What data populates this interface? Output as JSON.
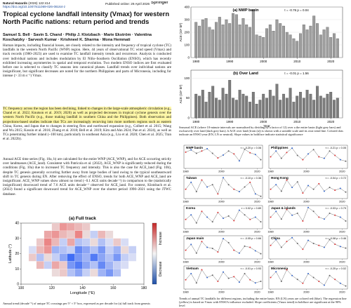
{
  "header": {
    "journal": "Natural Hazards",
    "volume": "(2026) 122:414",
    "doi": "https://doi.org/10.1007/s11069-026-06164-z",
    "published": "Published online: 29 April 2026",
    "publisher": "Springer"
  },
  "title": "Tropical cyclone landfall intensity (Vmax) for western North Pacific nations: return period and trends",
  "authors": "Samuel S. Bell · Savin S. Chand · Philip J. Klotzbach · Marie Ekström · Valentina Koschatzky · Sarvesh Kumar · Krishneel K. Sharma · Mona Hemmati",
  "abstract": "Human impacts, including financial losses, are closely related to the intensity and frequency of tropical cyclone (TC) landfalls in the western North Pacific (WNP) region. Here, 44 years of observational TC wind speed (Vmax) and track records (1980–2023) are used to examine TC landfall intensity trends and recurrence. Analysis is conducted over individual nations and includes modulation by El Niño–Southern Oscillation (ENSO), which has recently exhibited increasing asymmetries in spatial and temporal evolution. Two modern ENSO indices are first evaluated before one is selected to classify TC seasons into canonical phases. Landfall trends over individual nations are insignificant, but significant decreases are noted for the northern Philippines and parts of Micronesia, including for intense (> 33 m s⁻¹) Vmax.",
  "body": [
    "TC frequency across the region has been declining, linked to changes in the large-scale atmospheric circulation (e.g., Chand et al. 2022; Knutson et al. 2019; 2020) as well as projected decreases in tropical cyclone genesis over the western North Pacific (e.g., those making landfall in southern China and the Philippines). Both observation and projections-based studies indicate that TCs are increasingly recurving into more northern regions such as eastern China, Korea, and Japan due to changes in steering flow and northward expansion (e.g., Colbert et al. 2015; Wang and Wu 2015; Kossin et al. 2016; Zhang et al. 2018; Bell et al. 2019; Kim and Ahn 2024; Pan et al. 2024), as well as TCs penetrating further inland (~100 km), particularly in southeast Asia (e.g., Liu et al. 2020; Chen et al. 2025; Tran et al. 2022b).",
    "Annual ACE time series (Fig. 10a, b) are calculated for the entire WNP (ACE_WNP), and for ACE occurring strictly over landmasses (ACE_land). Consistent with Patricola et al. (2022), ACE_WNP is significantly reduced during the conditions (Fig. 10a) due to increased TC frequency and intensity. This is also the case for ACE_land (Fig. 10b), despite TC genesis generally occurring further away from large bodies of land owing to the typical southeastward shift in TC genesis during EN. After removing the effect of ENSO, trends for both ACE_WNP and ACE_land are insignificant. ACE_WNP values show almost no trend (−0.1 ACE units decade⁻¹) in comparison to the (statistically insignificant) downward trend of 7.6 ACE units decade⁻¹ observed for ACE_land. For context, Klotzbach et al. (2022) found a significant downward trend for ACE_WNP over the shorter period 1990–2021 using the JTWC database."
  ],
  "figures": {
    "heatmap_caption": "Annual trend (decade⁻¹) of unique TC crossings per 5° × 5° box, expressed as per decade for (a) full track from genesis",
    "ace_caption": "Seasonal ACE (where 10-minute intervals are normalised by dividing by a factor of 12) over a the entire basin (light grey bars) and exclusively over land (dark grey bars). b ACE over land (from (a)) is shown with a suitable scale and its own trend line. Colored dots indicate an ENSO year (EN, LN or neutral). Slope values in boldface indicate statistical significance",
    "panels_caption": "Trends of annual TC landfalls for different regions, including the entire basin. EN (LN) years are colored red (blue). The regression line (yellow) is based on Vmax with ENSO's influence excluded. Slope coefficients (Vmax trend) in boldface are significant at the 90% level"
  },
  "chart_data": [
    {
      "type": "bar",
      "title": "(a) NWP basin",
      "stats": "τ = -0.76  p = 0.04",
      "ylabel": "ACE (10⁴ kt²)",
      "color": "#9e9e9e",
      "x": [
        1980,
        1981,
        1982,
        1983,
        1984,
        1985,
        1986,
        1987,
        1988,
        1989,
        1990,
        1991,
        1992,
        1993,
        1994,
        1995,
        1996,
        1997,
        1998,
        1999,
        2000,
        2001,
        2002,
        2003,
        2004,
        2005,
        2006,
        2007,
        2008,
        2009,
        2010,
        2011,
        2012,
        2013,
        2014,
        2015,
        2016,
        2017,
        2018,
        2019,
        2020,
        2021,
        2022
      ],
      "values": [
        280,
        250,
        300,
        310,
        240,
        220,
        280,
        320,
        260,
        300,
        270,
        350,
        340,
        260,
        310,
        260,
        240,
        380,
        180,
        170,
        160,
        230,
        260,
        210,
        300,
        270,
        250,
        200,
        180,
        150,
        130,
        190,
        260,
        220,
        250,
        330,
        270,
        180,
        220,
        240,
        160,
        190,
        150
      ],
      "xlim": [
        1978.5,
        2023.5
      ],
      "xticks": [
        1980,
        1990,
        2000,
        2010,
        2020
      ],
      "ylim": [
        0,
        400
      ],
      "yticks": [
        0,
        100,
        200,
        300,
        400
      ]
    },
    {
      "type": "bar",
      "title": "(b) Over Land",
      "stats": "τ = -0.01  p = 1.56",
      "ylabel": "ACE (10⁴ kt²)",
      "xlabel": "Year",
      "color": "#7d7d7d",
      "x": [
        1980,
        1981,
        1982,
        1983,
        1984,
        1985,
        1986,
        1987,
        1988,
        1989,
        1990,
        1991,
        1992,
        1993,
        1994,
        1995,
        1996,
        1997,
        1998,
        1999,
        2000,
        2001,
        2002,
        2003,
        2004,
        2005,
        2006,
        2007,
        2008,
        2009,
        2010,
        2011,
        2012,
        2013,
        2014,
        2015,
        2016,
        2017,
        2018,
        2019,
        2020,
        2021,
        2022
      ],
      "values": [
        60,
        55,
        70,
        40,
        65,
        80,
        50,
        45,
        75,
        60,
        95,
        50,
        45,
        70,
        60,
        55,
        40,
        65,
        35,
        45,
        60,
        50,
        70,
        55,
        85,
        45,
        60,
        50,
        75,
        40,
        55,
        65,
        50,
        70,
        60,
        45,
        80,
        55,
        50,
        60,
        65,
        45,
        50
      ],
      "xlim": [
        1978.5,
        2023.5
      ],
      "xticks": [
        1980,
        1990,
        2000,
        2010,
        2020
      ],
      "ylim": [
        0,
        120
      ],
      "yticks": [
        0,
        50,
        100
      ]
    },
    {
      "type": "line",
      "title": "NWP basin",
      "stats": "τ = -0.20 p = 0.06",
      "x": [
        1980,
        1983,
        1986,
        1989,
        1992,
        1995,
        1998,
        2001,
        2004,
        2007,
        2010,
        2013,
        2016,
        2019,
        2022
      ],
      "values": [
        280,
        320,
        260,
        300,
        340,
        260,
        180,
        230,
        300,
        250,
        130,
        330,
        270,
        240,
        150
      ],
      "xlim": [
        1979,
        2023
      ],
      "xticks": [
        1980,
        2000,
        2020
      ],
      "ylim": [
        0,
        400
      ]
    },
    {
      "type": "line",
      "title": "Philippines",
      "stats": "τ = -0.21 p = 0.05",
      "x": [
        1980,
        1983,
        1986,
        1989,
        1992,
        1995,
        1998,
        2001,
        2004,
        2007,
        2010,
        2013,
        2016,
        2019,
        2022
      ],
      "values": [
        40,
        60,
        35,
        55,
        70,
        45,
        30,
        50,
        65,
        40,
        35,
        60,
        45,
        30,
        25
      ],
      "xlim": [
        1979,
        2023
      ],
      "xticks": [
        1980,
        2000,
        2020
      ],
      "ylim": [
        0,
        80
      ]
    },
    {
      "type": "line",
      "title": "Taiwan",
      "stats": "τ = -0.10 p = 0.36",
      "x": [
        1980,
        1983,
        1986,
        1989,
        1992,
        1995,
        1998,
        2001,
        2004,
        2007,
        2010,
        2013,
        2016,
        2019,
        2022
      ],
      "values": [
        20,
        35,
        15,
        40,
        25,
        30,
        10,
        45,
        30,
        20,
        15,
        25,
        35,
        10,
        5
      ],
      "xlim": [
        1979,
        2023
      ],
      "xticks": [
        1980,
        2000,
        2020
      ],
      "ylim": [
        0,
        50
      ]
    },
    {
      "type": "line",
      "title": "Hong Kong",
      "stats": "τ = -0.04 p = 0.72",
      "x": [
        1980,
        1983,
        1986,
        1989,
        1992,
        1995,
        1998,
        2001,
        2004,
        2007,
        2010,
        2013,
        2016,
        2019,
        2022
      ],
      "values": [
        10,
        15,
        8,
        20,
        12,
        18,
        6,
        14,
        10,
        16,
        8,
        12,
        9,
        11,
        7
      ],
      "xlim": [
        1979,
        2023
      ],
      "xticks": [
        1980,
        2000,
        2020
      ],
      "ylim": [
        0,
        25
      ]
    },
    {
      "type": "line",
      "title": "Korea",
      "stats": "τ = 0.02 p = 0.89",
      "x": [
        1980,
        1983,
        1986,
        1989,
        1992,
        1995,
        1998,
        2001,
        2004,
        2007,
        2010,
        2013,
        2016,
        2019,
        2022
      ],
      "values": [
        8,
        12,
        5,
        15,
        10,
        6,
        14,
        9,
        11,
        7,
        16,
        12,
        8,
        10,
        6
      ],
      "xlim": [
        1979,
        2023
      ],
      "xticks": [
        1980,
        2000,
        2020
      ],
      "ylim": [
        0,
        20
      ]
    },
    {
      "type": "line",
      "title": "Japan & islands",
      "stats": "τ = -0.03 p = 0.79",
      "x": [
        1980,
        1983,
        1986,
        1989,
        1992,
        1995,
        1998,
        2001,
        2004,
        2007,
        2010,
        2013,
        2016,
        2019,
        2022
      ],
      "values": [
        30,
        45,
        25,
        50,
        35,
        40,
        20,
        55,
        45,
        30,
        25,
        40,
        35,
        30,
        20
      ],
      "xlim": [
        1979,
        2023
      ],
      "xticks": [
        1980,
        2000,
        2020
      ],
      "ylim": [
        0,
        60
      ]
    },
    {
      "type": "line",
      "title": "Japan main",
      "stats": "τ = -0.05 p = 0.66",
      "x": [
        1980,
        1983,
        1986,
        1989,
        1992,
        1995,
        1998,
        2001,
        2004,
        2007,
        2010,
        2013,
        2016,
        2019,
        2022
      ],
      "values": [
        15,
        25,
        10,
        30,
        20,
        18,
        12,
        35,
        28,
        15,
        10,
        22,
        20,
        14,
        9
      ],
      "xlim": [
        1979,
        2023
      ],
      "xticks": [
        1980,
        2000,
        2020
      ],
      "ylim": [
        0,
        40
      ]
    },
    {
      "type": "line",
      "title": "China",
      "stats": "τ = -0.08 p = 0.46",
      "x": [
        1980,
        1983,
        1986,
        1989,
        1992,
        1995,
        1998,
        2001,
        2004,
        2007,
        2010,
        2013,
        2016,
        2019,
        2022
      ],
      "values": [
        35,
        50,
        30,
        45,
        55,
        40,
        25,
        48,
        40,
        35,
        30,
        50,
        38,
        32,
        28
      ],
      "xlim": [
        1979,
        2023
      ],
      "xticks": [
        1980,
        2000,
        2020
      ],
      "ylim": [
        0,
        60
      ]
    },
    {
      "type": "line",
      "title": "Vietnam",
      "stats": "τ = -0.01 p = 0.93",
      "x": [
        1980,
        1983,
        1986,
        1989,
        1992,
        1995,
        1998,
        2001,
        2004,
        2007,
        2010,
        2013,
        2016,
        2019,
        2022
      ],
      "values": [
        12,
        20,
        8,
        25,
        15,
        18,
        10,
        22,
        14,
        16,
        9,
        20,
        12,
        8,
        10
      ],
      "xlim": [
        1979,
        2023
      ],
      "xticks": [
        1980,
        2000,
        2020
      ],
      "ylim": [
        0,
        30
      ]
    },
    {
      "type": "line",
      "title": "Micronesia",
      "stats": "τ = -0.25 p = 0.02",
      "x": [
        1980,
        1983,
        1986,
        1989,
        1992,
        1995,
        1998,
        2001,
        2004,
        2007,
        2010,
        2013,
        2016,
        2019,
        2022
      ],
      "values": [
        30,
        45,
        20,
        50,
        35,
        25,
        15,
        40,
        30,
        20,
        10,
        35,
        25,
        15,
        8
      ],
      "xlim": [
        1979,
        2023
      ],
      "xticks": [
        1980,
        2000,
        2020
      ],
      "ylim": [
        0,
        60
      ]
    },
    {
      "type": "heatmap",
      "title": "(a) Full track",
      "xlabel": "Longitude (°E)",
      "ylabel": "Latitude (°)",
      "colorbar_labels": [
        "Increase",
        "Decrease"
      ],
      "x": [
        100,
        105,
        110,
        115,
        120,
        125,
        130,
        135,
        140,
        145,
        150,
        155,
        160,
        165,
        170,
        175
      ],
      "y": [
        5,
        10,
        15,
        20,
        25,
        30,
        35
      ],
      "values": [
        [
          null,
          null,
          null,
          null,
          0.1,
          0.2,
          -0.3,
          -0.5,
          -0.2,
          0.1,
          -0.4,
          -0.6,
          -0.3,
          null,
          null,
          null
        ],
        [
          null,
          null,
          0.3,
          -0.2,
          0.4,
          0.2,
          -0.6,
          -0.8,
          -0.5,
          -0.3,
          -0.7,
          -0.4,
          -0.2,
          -0.1,
          null,
          null
        ],
        [
          null,
          0.2,
          -0.3,
          0.1,
          -0.2,
          -0.5,
          -0.9,
          -0.6,
          -0.4,
          -0.8,
          -0.5,
          -0.3,
          -0.6,
          -0.2,
          -0.1,
          null
        ],
        [
          null,
          -0.1,
          0.3,
          0.5,
          -0.4,
          -0.3,
          -0.2,
          -0.7,
          -0.5,
          -0.3,
          -0.6,
          -0.2,
          -0.4,
          0.1,
          -0.2,
          null
        ],
        [
          null,
          null,
          0.2,
          0.6,
          0.3,
          -0.2,
          0.4,
          -0.3,
          -0.2,
          0.1,
          -0.3,
          -0.1,
          0.2,
          -0.1,
          null,
          null
        ],
        [
          null,
          null,
          null,
          0.4,
          0.5,
          0.3,
          0.2,
          0.6,
          0.1,
          -0.2,
          0.3,
          0.1,
          null,
          null,
          null,
          null
        ],
        [
          null,
          null,
          null,
          null,
          0.2,
          0.5,
          0.4,
          0.3,
          0.2,
          null,
          null,
          null,
          null,
          null,
          null,
          null
        ]
      ],
      "xlim": [
        100,
        180
      ],
      "xticks": [
        100,
        120,
        140,
        160,
        180
      ],
      "ylim": [
        0,
        40
      ],
      "yticks": [
        0,
        10,
        20,
        30,
        40
      ]
    }
  ]
}
